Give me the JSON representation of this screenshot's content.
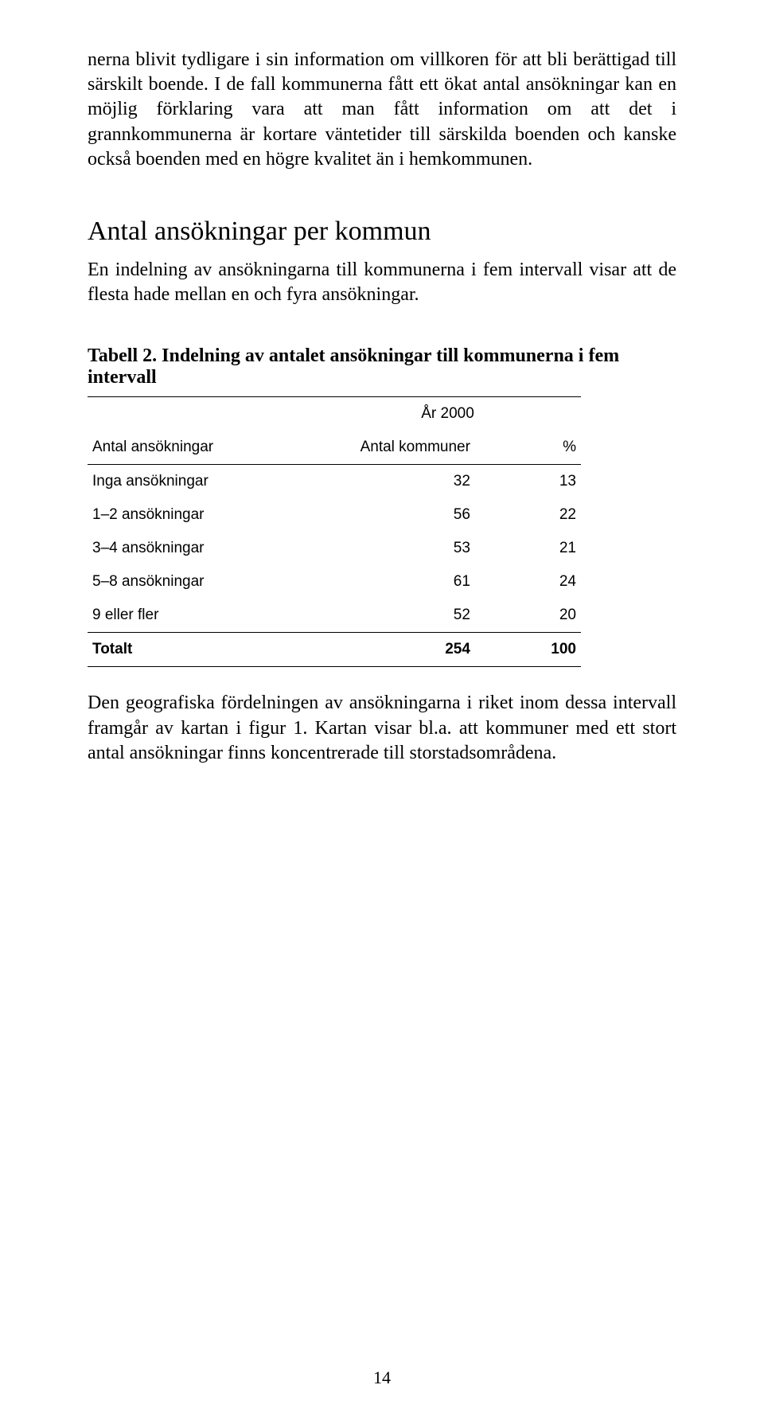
{
  "paragraph1": "nerna blivit tydligare i sin information om villkoren för att bli berättigad till särskilt boende. I de fall kommunerna fått ett ökat antal ansökningar kan en möjlig förklaring vara att man fått information om att det i grannkommunerna är kortare väntetider till särskilda boenden och kanske också boenden med en högre kvalitet än i hemkommunen.",
  "heading": "Antal ansökningar per kommun",
  "paragraph2": "En indelning av ansökningarna till kommunerna i fem intervall visar att de flesta hade mellan en och fyra ansökningar.",
  "tableCaption": "Tabell 2. Indelning av antalet ansökningar till kommunerna i fem intervall",
  "table": {
    "yearLabel": "År 2000",
    "colHeaders": {
      "c0": "Antal ansökningar",
      "c1": "Antal kommuner",
      "c2": "%"
    },
    "rows": [
      {
        "label": "Inga ansökningar",
        "n": "32",
        "pct": "13"
      },
      {
        "label": "1–2 ansökningar",
        "n": "56",
        "pct": "22"
      },
      {
        "label": "3–4 ansökningar",
        "n": "53",
        "pct": "21"
      },
      {
        "label": "5–8 ansökningar",
        "n": "61",
        "pct": "24"
      },
      {
        "label": "9 eller fler",
        "n": "52",
        "pct": "20"
      }
    ],
    "total": {
      "label": "Totalt",
      "n": "254",
      "pct": "100"
    }
  },
  "paragraph3": "Den geografiska fördelningen av ansökningarna i riket inom dessa intervall framgår av kartan i figur 1. Kartan visar bl.a. att kommuner med ett stort antal ansökningar finns koncentrerade till storstadsområdena.",
  "pageNumber": "14"
}
